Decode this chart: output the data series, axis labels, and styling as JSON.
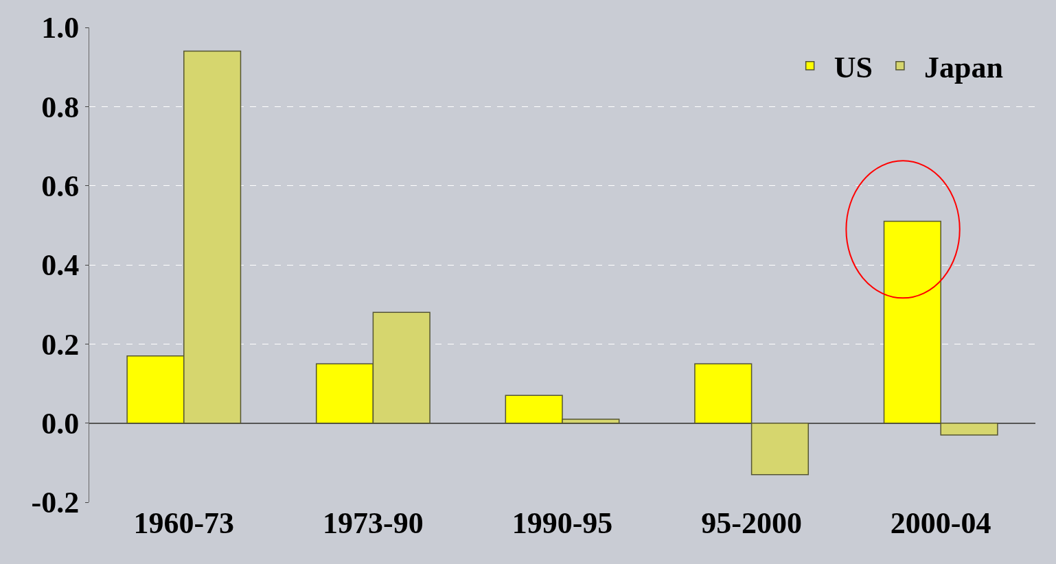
{
  "chart_data": {
    "type": "bar",
    "categories": [
      "1960-73",
      "1973-90",
      "1990-95",
      "95-2000",
      "2000-04"
    ],
    "series": [
      {
        "name": "US",
        "color": "#ffff00",
        "values": [
          0.17,
          0.15,
          0.07,
          0.15,
          0.51
        ]
      },
      {
        "name": "Japan",
        "color": "#d6d66e",
        "values": [
          0.94,
          0.28,
          0.01,
          -0.13,
          -0.03
        ]
      }
    ],
    "ylim": [
      -0.2,
      1.0
    ],
    "yticks": [
      -0.2,
      {
        "value": 0,
        "label": "0.0"
      },
      0.2,
      0.4,
      0.6,
      0.8,
      {
        "value": 1,
        "label": "1.0"
      }
    ],
    "grid": "y",
    "legend": "top right"
  }
}
